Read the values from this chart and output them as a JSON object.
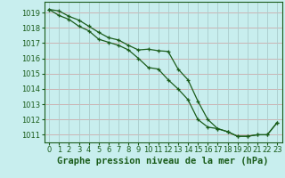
{
  "title": "Graphe pression niveau de la mer (hPa)",
  "background_color": "#c8eeee",
  "grid_color_h": "#ccaaaa",
  "grid_color_v": "#aacccc",
  "line_color": "#1a5c1a",
  "marker_color": "#1a5c1a",
  "xlim": [
    -0.5,
    23.5
  ],
  "ylim": [
    1010.5,
    1019.7
  ],
  "yticks": [
    1011,
    1012,
    1013,
    1014,
    1015,
    1016,
    1017,
    1018,
    1019
  ],
  "xticks": [
    0,
    1,
    2,
    3,
    4,
    5,
    6,
    7,
    8,
    9,
    10,
    11,
    12,
    13,
    14,
    15,
    16,
    17,
    18,
    19,
    20,
    21,
    22,
    23
  ],
  "series1_x": [
    0,
    1,
    2,
    3,
    4,
    5,
    6,
    7,
    8,
    9,
    10,
    11,
    12,
    13,
    14,
    15,
    16,
    17,
    18,
    19,
    20,
    21,
    22,
    23
  ],
  "series1_y": [
    1019.2,
    1019.1,
    1018.75,
    1018.5,
    1018.1,
    1017.7,
    1017.35,
    1017.2,
    1016.85,
    1016.55,
    1016.6,
    1016.5,
    1016.45,
    1015.3,
    1014.6,
    1013.2,
    1012.0,
    1011.4,
    1011.2,
    1010.9,
    1010.9,
    1011.0,
    1011.0,
    1011.8
  ],
  "series2_x": [
    0,
    1,
    2,
    3,
    4,
    5,
    6,
    7,
    8,
    9,
    10,
    11,
    12,
    13,
    14,
    15,
    16,
    17,
    18,
    19,
    20,
    21,
    22,
    23
  ],
  "series2_y": [
    1019.2,
    1018.8,
    1018.55,
    1018.1,
    1017.8,
    1017.25,
    1017.05,
    1016.85,
    1016.55,
    1016.0,
    1015.4,
    1015.3,
    1014.6,
    1014.0,
    1013.3,
    1012.0,
    1011.5,
    1011.4,
    1011.2,
    1010.9,
    1010.9,
    1011.0,
    1011.0,
    1011.8
  ],
  "tick_fontsize": 6,
  "title_fontsize": 7.5
}
